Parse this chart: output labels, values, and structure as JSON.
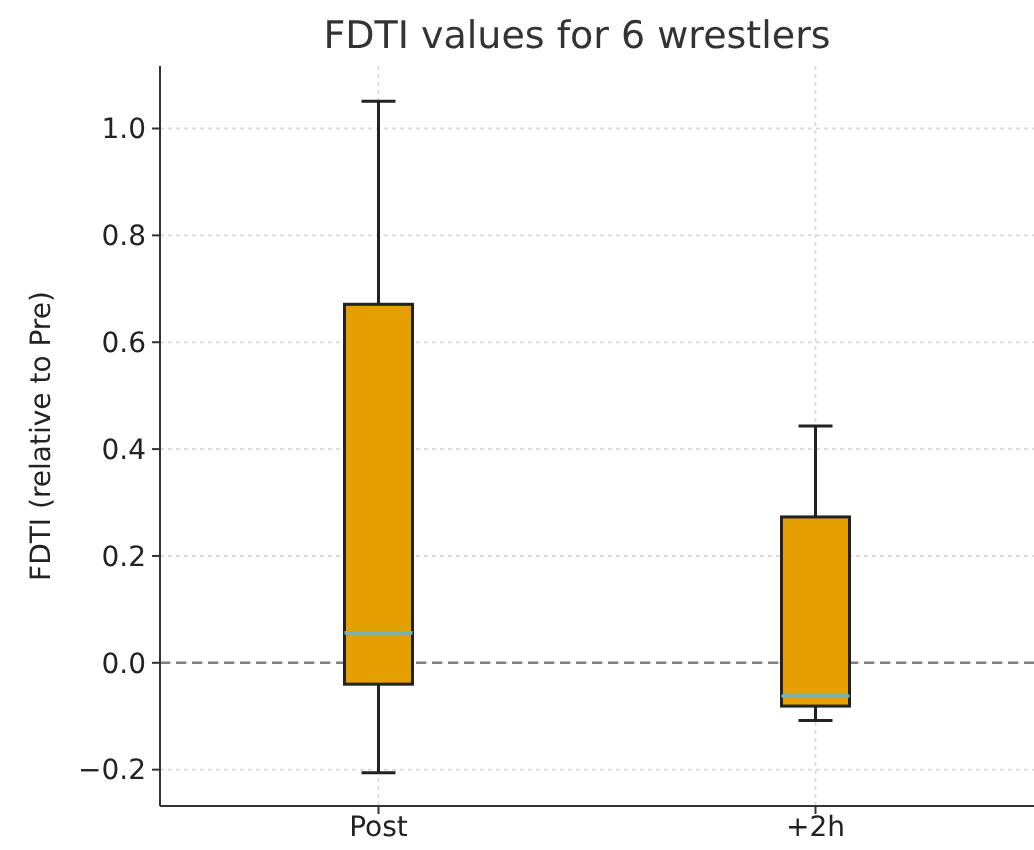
{
  "chart_data": {
    "type": "box",
    "title": "FDTI values for 6 wrestlers",
    "ylabel": "FDTI (relative to Pre)",
    "categories": [
      "Post",
      "+2h"
    ],
    "color": "#e69f00",
    "boxes": [
      {
        "low": -0.206,
        "q1": -0.04,
        "median": 0.056,
        "q3": 0.671,
        "high": 1.051
      },
      {
        "low": -0.108,
        "q1": -0.081,
        "median": -0.062,
        "q3": 0.273,
        "high": 0.443
      }
    ],
    "ylim": [
      -0.268,
      1.117
    ],
    "yticks": [
      {
        "value": -0.2,
        "label": "−0.2"
      },
      {
        "value": 0,
        "label": "0.0"
      },
      {
        "value": 0.2,
        "label": "0.2"
      },
      {
        "value": 0.4,
        "label": "0.4"
      },
      {
        "value": 0.6,
        "label": "0.6"
      },
      {
        "value": 0.8,
        "label": "0.8"
      },
      {
        "value": 1,
        "label": "1.0"
      }
    ],
    "grid": true,
    "ref_lines": [
      {
        "axis": "y",
        "value": 0,
        "color": "#808080",
        "line_style": "dashed"
      }
    ]
  }
}
